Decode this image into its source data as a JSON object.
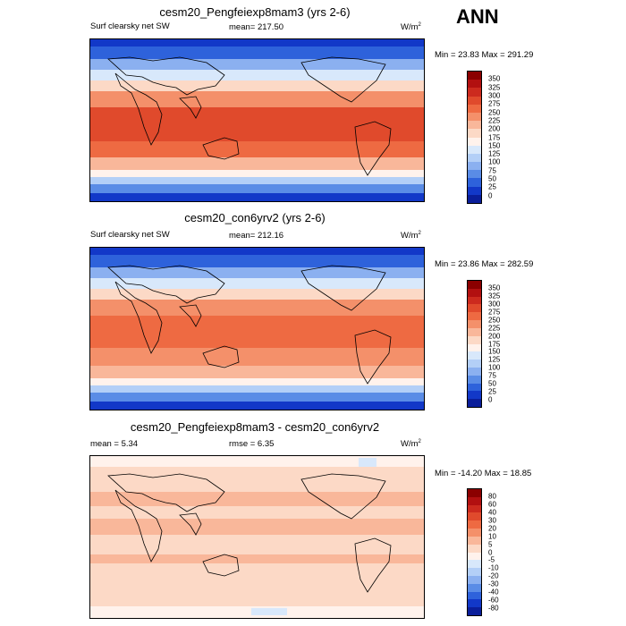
{
  "season": "ANN",
  "panels": [
    {
      "title": "cesm20_Pengfeiexp8mam3 (yrs 2-6)",
      "left_label": "Surf clearsky net SW",
      "center_label": "mean= 217.50",
      "units": "W/m",
      "units_sup": "2",
      "minmax": "Min =  23.83 Max = 291.29",
      "levels": [
        "350",
        "325",
        "300",
        "275",
        "250",
        "225",
        "200",
        "175",
        "150",
        "125",
        "100",
        "75",
        "50",
        "25",
        "0"
      ],
      "colors": [
        "#8b0000",
        "#b21010",
        "#cc2a1e",
        "#e04a2c",
        "#ee6a42",
        "#f4906a",
        "#f9b79a",
        "#fcd9c6",
        "#fff2ec",
        "#d8e8fb",
        "#b3cff7",
        "#8bb0f0",
        "#5a8ce6",
        "#2e62db",
        "#1238c8",
        "#0a1e9a"
      ]
    },
    {
      "title": "cesm20_con6yrv2 (yrs 2-6)",
      "left_label": "Surf clearsky net SW",
      "center_label": "mean= 212.16",
      "units": "W/m",
      "units_sup": "2",
      "minmax": "Min =  23.86 Max = 282.59",
      "levels": [
        "350",
        "325",
        "300",
        "275",
        "250",
        "225",
        "200",
        "175",
        "150",
        "125",
        "100",
        "75",
        "50",
        "25",
        "0"
      ],
      "colors": [
        "#8b0000",
        "#b21010",
        "#cc2a1e",
        "#e04a2c",
        "#ee6a42",
        "#f4906a",
        "#f9b79a",
        "#fcd9c6",
        "#fff2ec",
        "#d8e8fb",
        "#b3cff7",
        "#8bb0f0",
        "#5a8ce6",
        "#2e62db",
        "#1238c8",
        "#0a1e9a"
      ]
    },
    {
      "title": "cesm20_Pengfeiexp8mam3 - cesm20_con6yrv2",
      "left_label": "mean =   5.34",
      "center_label": "rmse =   6.35",
      "units": "W/m",
      "units_sup": "2",
      "minmax": "Min = -14.20 Max =  18.85",
      "levels": [
        "80",
        "60",
        "40",
        "30",
        "20",
        "10",
        "5",
        "0",
        "-5",
        "-10",
        "-20",
        "-30",
        "-40",
        "-60",
        "-80"
      ],
      "colors": [
        "#8b0000",
        "#b21010",
        "#cc2a1e",
        "#e04a2c",
        "#ee6a42",
        "#f4906a",
        "#f9b79a",
        "#fcd9c6",
        "#fff2ec",
        "#d8e8fb",
        "#b3cff7",
        "#8bb0f0",
        "#5a8ce6",
        "#2e62db",
        "#1238c8",
        "#0a1e9a"
      ]
    }
  ]
}
